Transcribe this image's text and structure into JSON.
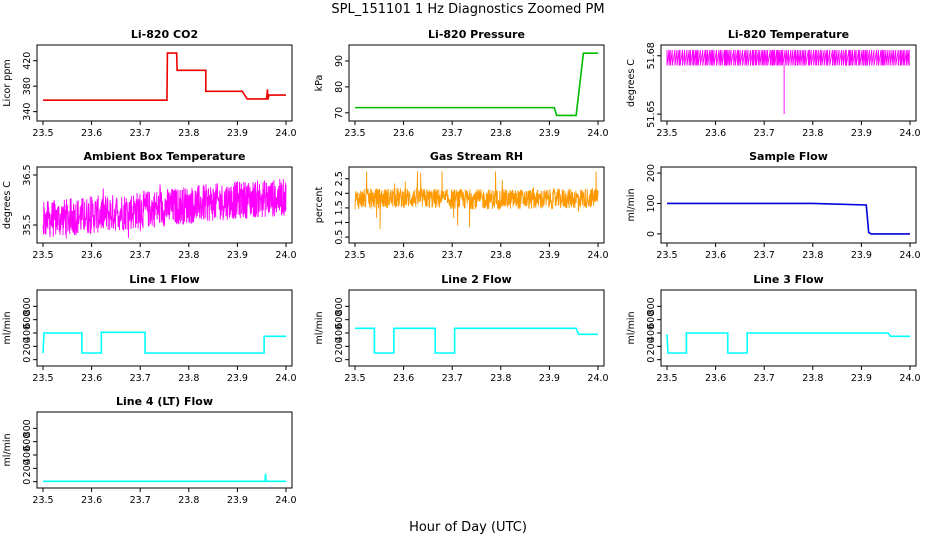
{
  "title": "SPL_151101  1 Hz Diagnostics Zoomed PM",
  "xlabel": "Hour of Day (UTC)",
  "chart_data": [
    {
      "type": "line",
      "title": "Li-820 CO2",
      "ylabel": "Licor ppm",
      "color": "#ee0000",
      "xlim": [
        23.5,
        24.0
      ],
      "ylim": [
        330,
        440
      ],
      "yticks": [
        340,
        380,
        420
      ],
      "xticks": [
        23.5,
        23.6,
        23.7,
        23.8,
        23.9,
        24.0
      ],
      "x": [
        23.5,
        23.755,
        23.756,
        23.775,
        23.776,
        23.8,
        23.81,
        23.81,
        23.83,
        23.835,
        23.835,
        23.86,
        23.865,
        23.865,
        23.91,
        23.92,
        23.96,
        23.962,
        23.962,
        23.963,
        23.965,
        24.0
      ],
      "y": [
        358,
        358,
        432,
        432,
        405,
        405,
        405,
        405,
        405,
        405,
        372,
        372,
        372,
        372,
        372,
        360,
        360,
        375,
        360,
        360,
        366,
        366
      ]
    },
    {
      "type": "line",
      "title": "Li-820 Pressure",
      "ylabel": "kPa",
      "color": "#00bb00",
      "xlim": [
        23.5,
        24.0
      ],
      "ylim": [
        68,
        95
      ],
      "yticks": [
        70,
        80,
        90
      ],
      "xticks": [
        23.5,
        23.6,
        23.7,
        23.8,
        23.9,
        24.0
      ],
      "x": [
        23.5,
        23.91,
        23.915,
        23.955,
        23.965,
        23.97,
        23.975,
        24.0
      ],
      "y": [
        72,
        72,
        69,
        69,
        85,
        93,
        93,
        93
      ]
    },
    {
      "type": "line",
      "title": "Li-820 Temperature",
      "ylabel": "degrees C",
      "color": "#ff00ff",
      "xlim": [
        23.5,
        24.0
      ],
      "ylim": [
        51.648,
        51.684
      ],
      "yticks": [
        51.65,
        51.68
      ],
      "xticks": [
        23.5,
        23.6,
        23.7,
        23.8,
        23.9,
        24.0
      ],
      "x": [
        23.5,
        23.74,
        23.741,
        23.742,
        24.0
      ],
      "y": [
        51.675,
        51.675,
        51.65,
        51.675,
        51.675
      ]
    },
    {
      "type": "line",
      "title": "Ambient Box Temperature",
      "ylabel": "degrees C",
      "color": "#ff00ff",
      "xlim": [
        23.5,
        24.0
      ],
      "ylim": [
        35.2,
        36.6
      ],
      "yticks": [
        35.5,
        36.5
      ],
      "xticks": [
        23.5,
        23.6,
        23.7,
        23.8,
        23.9,
        24.0
      ],
      "x": [
        23.5,
        23.6,
        23.7,
        23.8,
        23.9,
        24.0
      ],
      "y": [
        35.6,
        35.7,
        35.8,
        35.9,
        36.0,
        36.05
      ]
    },
    {
      "type": "line",
      "title": "Gas Stream RH",
      "ylabel": "percent",
      "color": "#ff9900",
      "xlim": [
        23.5,
        24.0
      ],
      "ylim": [
        0.4,
        2.8
      ],
      "yticks": [
        0.5,
        1.0,
        1.5,
        2.0,
        2.5
      ],
      "xticks": [
        23.5,
        23.6,
        23.7,
        23.8,
        23.9,
        24.0
      ],
      "x": [
        23.5,
        23.6,
        23.7,
        23.8,
        23.9,
        24.0
      ],
      "y": [
        1.8,
        1.85,
        1.8,
        1.8,
        1.8,
        1.85
      ]
    },
    {
      "type": "line",
      "title": "Sample Flow",
      "ylabel": "ml/min",
      "color": "#0000dd",
      "xlim": [
        23.5,
        24.0
      ],
      "ylim": [
        -20,
        210
      ],
      "yticks": [
        0,
        100,
        200
      ],
      "xticks": [
        23.5,
        23.6,
        23.7,
        23.8,
        23.9,
        24.0
      ],
      "x": [
        23.5,
        23.8,
        23.91,
        23.915,
        23.92,
        24.0
      ],
      "y": [
        100,
        100,
        95,
        5,
        0,
        0
      ]
    },
    {
      "type": "line",
      "title": "Line 1 Flow",
      "ylabel": "ml/min",
      "color": "#00ffff",
      "xlim": [
        23.5,
        24.0
      ],
      "ylim": [
        -50,
        1000
      ],
      "yticks": [
        0,
        200,
        400,
        600,
        800
      ],
      "xticks": [
        23.5,
        23.6,
        23.7,
        23.8,
        23.9,
        24.0
      ],
      "x": [
        23.5,
        23.502,
        23.58,
        23.58,
        23.62,
        23.62,
        23.71,
        23.71,
        23.955,
        23.955,
        24.0
      ],
      "y": [
        100,
        400,
        400,
        100,
        100,
        410,
        410,
        100,
        100,
        350,
        350
      ]
    },
    {
      "type": "line",
      "title": "Line 2 Flow",
      "ylabel": "ml/min",
      "color": "#00ffff",
      "xlim": [
        23.5,
        24.0
      ],
      "ylim": [
        -50,
        1000
      ],
      "yticks": [
        0,
        200,
        400,
        600,
        800
      ],
      "xticks": [
        23.5,
        23.6,
        23.7,
        23.8,
        23.9,
        24.0
      ],
      "x": [
        23.5,
        23.54,
        23.54,
        23.58,
        23.58,
        23.665,
        23.665,
        23.705,
        23.705,
        23.955,
        23.96,
        24.0
      ],
      "y": [
        470,
        470,
        100,
        100,
        470,
        470,
        100,
        100,
        470,
        470,
        380,
        380
      ]
    },
    {
      "type": "line",
      "title": "Line 3 Flow",
      "ylabel": "ml/min",
      "color": "#00ffff",
      "xlim": [
        23.5,
        24.0
      ],
      "ylim": [
        -50,
        1000
      ],
      "yticks": [
        0,
        200,
        400,
        600,
        800
      ],
      "xticks": [
        23.5,
        23.6,
        23.7,
        23.8,
        23.9,
        24.0
      ],
      "x": [
        23.5,
        23.502,
        23.54,
        23.54,
        23.625,
        23.625,
        23.665,
        23.665,
        23.955,
        23.96,
        24.0
      ],
      "y": [
        380,
        100,
        100,
        400,
        400,
        100,
        100,
        400,
        400,
        350,
        350
      ]
    },
    {
      "type": "line",
      "title": "Line 4 (LT) Flow",
      "ylabel": "ml/min",
      "color": "#00ffff",
      "xlim": [
        23.5,
        24.0
      ],
      "ylim": [
        -50,
        1000
      ],
      "yticks": [
        0,
        200,
        400,
        600,
        800
      ],
      "xticks": [
        23.5,
        23.6,
        23.7,
        23.8,
        23.9,
        24.0
      ],
      "x": [
        23.5,
        23.957,
        23.958,
        23.959,
        24.0
      ],
      "y": [
        5,
        5,
        120,
        5,
        5
      ]
    }
  ]
}
